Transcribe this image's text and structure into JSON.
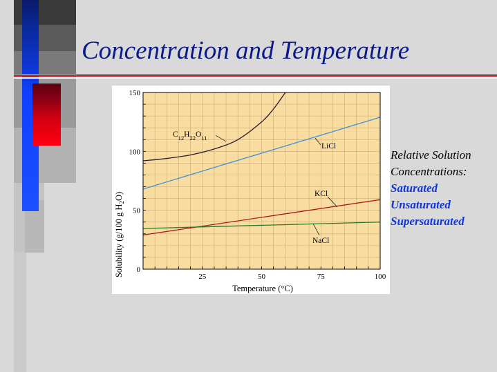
{
  "slide": {
    "title": "Concentration and Temperature",
    "side_text": {
      "line1": "Relative Solution",
      "line2": "Concentrations:",
      "items": [
        "Saturated",
        "Unsaturated",
        "Supersaturated"
      ]
    },
    "colors": {
      "title": "#0a1a8c",
      "side_highlight": "#1036d8",
      "chart_background": "#f9dda0",
      "accent_red": "#ff0000",
      "accent_blue": "#1040ff"
    }
  },
  "chart_data": {
    "type": "line",
    "xlabel": "Temperature (°C)",
    "ylabel_parts": [
      "Solubility (g/100 g H",
      "2",
      "O)"
    ],
    "xlim": [
      0,
      100
    ],
    "ylim": [
      0,
      150
    ],
    "x_ticks": [
      25,
      50,
      75,
      100
    ],
    "y_ticks": [
      0,
      50,
      100,
      150
    ],
    "grid": true,
    "series": [
      {
        "name": "C12H22O11",
        "label_parts": [
          [
            "C",
            false
          ],
          [
            "12",
            true
          ],
          [
            "H",
            false
          ],
          [
            "22",
            true
          ],
          [
            "O",
            false
          ],
          [
            "11",
            true
          ]
        ],
        "color": "#2a1a2e",
        "x": [
          0,
          10,
          20,
          30,
          40,
          50,
          55,
          60
        ],
        "y": [
          92,
          94,
          97,
          102,
          110,
          125,
          136,
          150
        ]
      },
      {
        "name": "LiCl",
        "label_parts": [
          [
            "LiCl",
            false
          ]
        ],
        "color": "#3f8fd8",
        "x": [
          0,
          100
        ],
        "y": [
          68,
          129
        ]
      },
      {
        "name": "KCl",
        "label_parts": [
          [
            "KCl",
            false
          ]
        ],
        "color": "#b01818",
        "x": [
          0,
          100
        ],
        "y": [
          29,
          59
        ]
      },
      {
        "name": "NaCl",
        "label_parts": [
          [
            "NaCl",
            false
          ]
        ],
        "color": "#2a7a2a",
        "x": [
          0,
          100
        ],
        "y": [
          34.5,
          40
        ]
      }
    ]
  }
}
